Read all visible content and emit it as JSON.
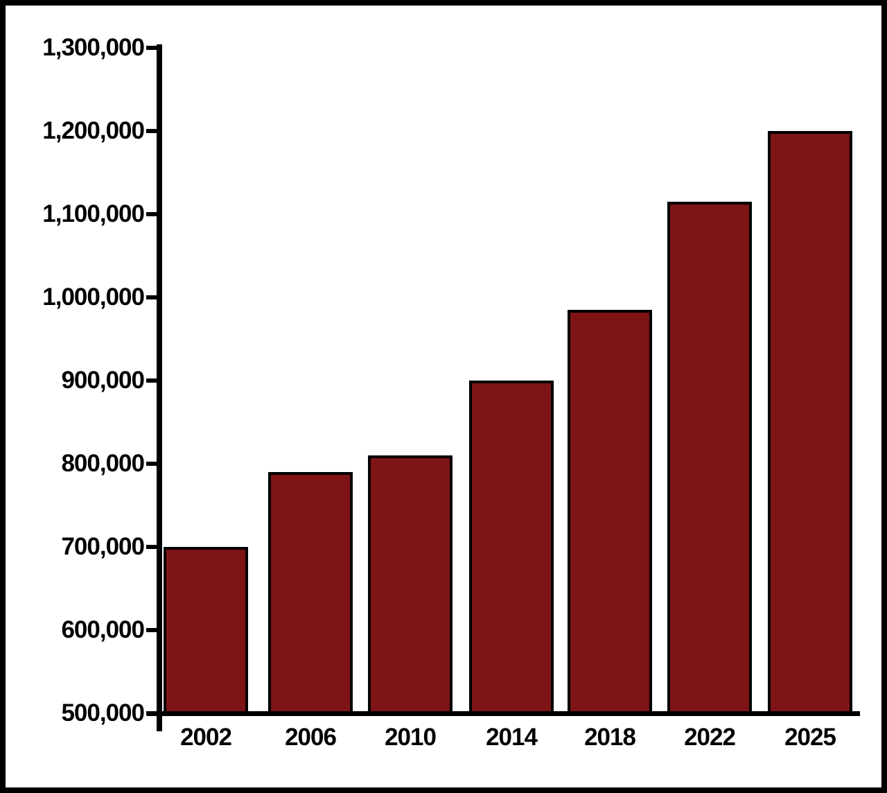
{
  "chart_data": {
    "type": "bar",
    "categories": [
      "2002",
      "2006",
      "2010",
      "2014",
      "2018",
      "2022",
      "2025"
    ],
    "values": [
      700000,
      790000,
      810000,
      900000,
      985000,
      1115000,
      1200000
    ],
    "title": "",
    "xlabel": "",
    "ylabel": "",
    "ylim": [
      500000,
      1300000
    ],
    "ytick_step": 100000,
    "ytick_labels": [
      "500,000",
      "600,000",
      "700,000",
      "800,000",
      "900,000",
      "1,000,000",
      "1,100,000",
      "1,200,000",
      "1,300,000"
    ],
    "grid": false,
    "legend_position": "none",
    "colors": {
      "bar_fill": "#7E1416",
      "bar_border": "#000000",
      "axis": "#000000",
      "background": "#FFFFFF",
      "text": "#000000"
    }
  }
}
